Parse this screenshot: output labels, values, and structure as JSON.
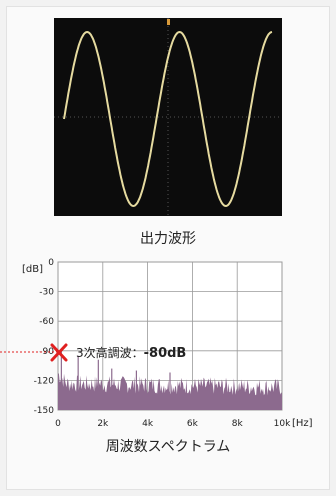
{
  "captions": {
    "waveform": "出力波形",
    "spectrum": "周波数スペクトラム"
  },
  "annotation": {
    "label": "3次高調波：",
    "value": "-80dB"
  },
  "colors": {
    "wave": "#e6dba0",
    "spectrum_fill": "#8c6a8e",
    "marker": "#e02020",
    "grid": "#9a9a9a"
  },
  "chart_data": [
    {
      "type": "line",
      "title": "",
      "description_caption_key": "waveform",
      "x": [
        0,
        0.25,
        0.5,
        0.75,
        1,
        1.25,
        1.5,
        1.75,
        2,
        2.25
      ],
      "y": [
        0,
        1,
        0,
        -1,
        0,
        1,
        0,
        -1,
        0,
        1
      ],
      "grid": true,
      "legend": "none"
    },
    {
      "type": "area",
      "title": "",
      "ylabel": "[dB]",
      "xlabel": "[Hz]",
      "xlim": [
        0,
        10000
      ],
      "ylim": [
        -150,
        0
      ],
      "x_ticks": [
        0,
        2000,
        4000,
        6000,
        8000,
        10000
      ],
      "x_tick_labels": [
        "0",
        "2k",
        "4k",
        "6k",
        "8k",
        "10k"
      ],
      "y_ticks": [
        0,
        -30,
        -60,
        -90,
        -120,
        -150
      ],
      "y_tick_labels": [
        "0",
        "-30",
        "-60",
        "-90",
        "-120",
        "-150"
      ],
      "grid": true,
      "legend": "none",
      "peaks": [
        {
          "x": 150,
          "y": -89
        },
        {
          "x": 900,
          "y": -95
        },
        {
          "x": 1800,
          "y": -99
        },
        {
          "x": 2400,
          "y": -108
        },
        {
          "x": 3500,
          "y": -110
        },
        {
          "x": 5000,
          "y": -112
        }
      ],
      "noise_floor_range": [
        -132,
        -114
      ],
      "annotation": {
        "x": 0,
        "y": -80
      }
    }
  ]
}
